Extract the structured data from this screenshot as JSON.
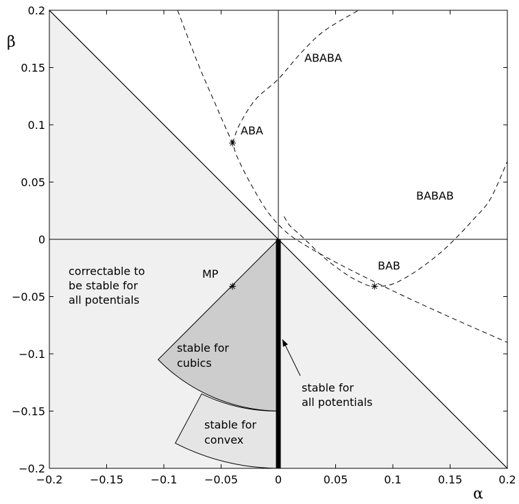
{
  "chart_data": {
    "type": "line",
    "title": "",
    "xlabel": "α",
    "ylabel": "β",
    "xlim": [
      -0.2,
      0.2
    ],
    "ylim": [
      -0.2,
      0.2
    ],
    "xticks": [
      "−0.2",
      "−0.15",
      "−0.1",
      "−0.05",
      "0",
      "0.05",
      "0.1",
      "0.15",
      "0.2"
    ],
    "xtick_values": [
      -0.2,
      -0.15,
      -0.1,
      -0.05,
      0,
      0.05,
      0.1,
      0.15,
      0.2
    ],
    "yticks": [
      "−0.2",
      "−0.15",
      "−0.1",
      "−0.05",
      "0",
      "0.05",
      "0.1",
      "0.15",
      "0.2"
    ],
    "ytick_values": [
      -0.2,
      -0.15,
      -0.1,
      -0.05,
      0,
      0.05,
      0.1,
      0.15,
      0.2
    ],
    "grid": false,
    "colors": {
      "light_region": "#f0f0f0",
      "convex_region": "#e5e5e5",
      "cubic_region": "#cdcdcd",
      "bold_line": "#000000"
    },
    "regions": [
      {
        "name": "correctable",
        "points": [
          [
            -0.2,
            0.2
          ],
          [
            -0.2,
            -0.2
          ],
          [
            0.2,
            -0.2
          ]
        ]
      },
      {
        "name": "convex",
        "points": [
          [
            0,
            0
          ],
          [
            -0.09,
            -0.178
          ],
          [
            -0.067,
            -0.135
          ],
          [
            0,
            -0.2
          ]
        ]
      },
      {
        "name": "cubic",
        "points": [
          [
            0,
            0
          ],
          [
            -0.105,
            -0.105
          ],
          [
            0,
            -0.15
          ]
        ]
      }
    ],
    "stable_all_segment": [
      [
        0,
        0
      ],
      [
        0,
        -0.2
      ]
    ],
    "series": [
      {
        "label": "ABA",
        "style": "dashed",
        "points": [
          [
            -0.088,
            0.2
          ],
          [
            -0.07,
            0.153
          ],
          [
            -0.055,
            0.118
          ],
          [
            -0.045,
            0.095
          ],
          [
            -0.04,
            0.084
          ],
          [
            -0.036,
            0.072
          ],
          [
            -0.025,
            0.05
          ],
          [
            -0.01,
            0.025
          ],
          [
            0.005,
            0.008
          ],
          [
            0.02,
            -0.003
          ],
          [
            0.05,
            -0.02
          ],
          [
            0.1,
            -0.045
          ],
          [
            0.15,
            -0.068
          ],
          [
            0.2,
            -0.09
          ]
        ]
      },
      {
        "label": "ABABA",
        "style": "dashed",
        "points": [
          [
            -0.04,
            0.084
          ],
          [
            -0.034,
            0.1
          ],
          [
            -0.02,
            0.122
          ],
          [
            0,
            0.14
          ],
          [
            0.02,
            0.163
          ],
          [
            0.04,
            0.182
          ],
          [
            0.07,
            0.2
          ]
        ]
      },
      {
        "label": "BAB",
        "style": "dashed",
        "points": [
          [
            0.005,
            0.02
          ],
          [
            0.01,
            0.012
          ],
          [
            0.02,
            0.003
          ],
          [
            0.04,
            -0.016
          ],
          [
            0.06,
            -0.031
          ],
          [
            0.075,
            -0.039
          ],
          [
            0.084,
            -0.041
          ],
          [
            0.1,
            -0.039
          ],
          [
            0.12,
            -0.028
          ],
          [
            0.14,
            -0.013
          ],
          [
            0.155,
            0.001
          ],
          [
            0.17,
            0.017
          ],
          [
            0.185,
            0.035
          ],
          [
            0.2,
            0.068
          ]
        ]
      }
    ],
    "markers": [
      {
        "label": "ABA",
        "x": -0.04,
        "y": 0.084
      },
      {
        "label": "BAB",
        "x": 0.084,
        "y": -0.041
      },
      {
        "label": "MP",
        "x": -0.04,
        "y": -0.041
      }
    ],
    "annotations": {
      "ababa": "ABABA",
      "aba": "ABA",
      "babab": "BABAB",
      "bab": "BAB",
      "mp": "MP",
      "correctable": [
        "correctable to",
        "be stable for",
        "all potentials"
      ],
      "cubics": [
        "stable for",
        "cubics"
      ],
      "convex": [
        "stable for",
        "convex"
      ],
      "all_potentials": [
        "stable for",
        "all potentials"
      ]
    }
  }
}
